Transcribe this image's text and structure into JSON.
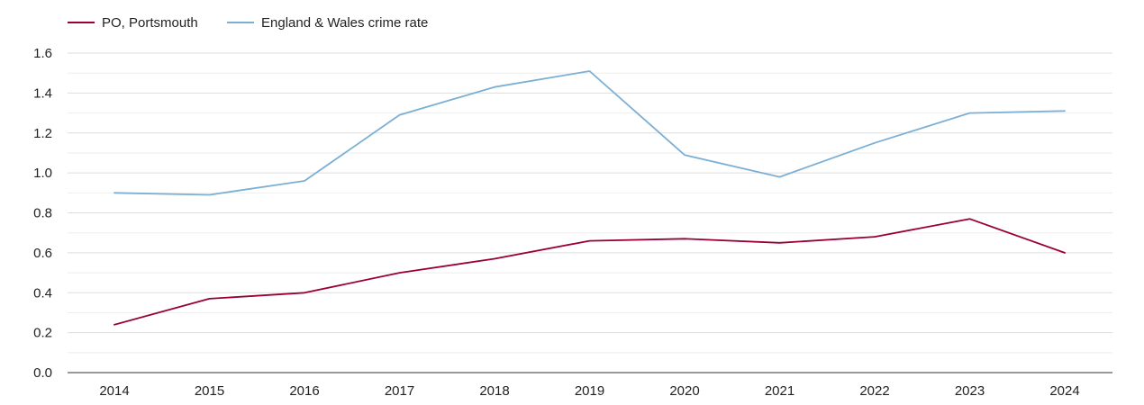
{
  "chart_data": {
    "type": "line",
    "title": "",
    "xlabel": "",
    "ylabel": "",
    "x": [
      "2014",
      "2015",
      "2016",
      "2017",
      "2018",
      "2019",
      "2020",
      "2021",
      "2022",
      "2023",
      "2024"
    ],
    "ylim": [
      0,
      1.6
    ],
    "yticks": [
      "0.0",
      "0.2",
      "0.4",
      "0.6",
      "0.8",
      "1.0",
      "1.2",
      "1.4",
      "1.6"
    ],
    "grid": true,
    "legend_position": "top-left",
    "series": [
      {
        "name": "PO, Portsmouth",
        "color": "#990033",
        "values": [
          0.24,
          0.37,
          0.4,
          0.5,
          0.57,
          0.66,
          0.67,
          0.65,
          0.68,
          0.77,
          0.6
        ]
      },
      {
        "name": "England & Wales crime rate",
        "color": "#7bafd4",
        "values": [
          0.9,
          0.89,
          0.96,
          1.29,
          1.43,
          1.51,
          1.09,
          0.98,
          1.15,
          1.3,
          1.31
        ]
      }
    ]
  }
}
